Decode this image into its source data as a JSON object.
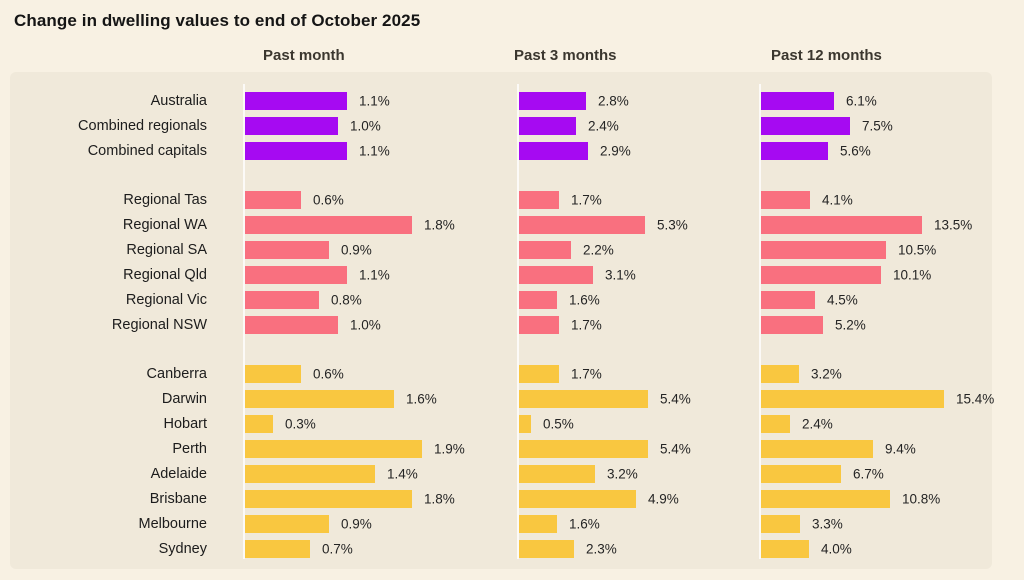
{
  "title": "Change in dwelling values to end of October 2025",
  "columns": [
    "Past month",
    "Past 3 months",
    "Past 12 months"
  ],
  "colors": {
    "background": "#F8F1E3",
    "panel": "#F0E9DA",
    "national": "#A60AF2",
    "regional": "#F9707F",
    "capitals": "#F9C740"
  },
  "chart_data": {
    "type": "bar",
    "orientation": "horizontal",
    "title": "Change in dwelling values to end of October 2025",
    "column_headers": [
      "Past month",
      "Past 3 months",
      "Past 12 months"
    ],
    "value_suffix": "%",
    "legend": "none",
    "grid": "baseline-only",
    "groups": [
      {
        "name": "national",
        "color": "#A60AF2",
        "rows": [
          {
            "label": "Australia",
            "values": [
              1.1,
              2.8,
              6.1
            ]
          },
          {
            "label": "Combined regionals",
            "values": [
              1.0,
              2.4,
              7.5
            ]
          },
          {
            "label": "Combined capitals",
            "values": [
              1.1,
              2.9,
              5.6
            ]
          }
        ]
      },
      {
        "name": "regional",
        "color": "#F9707F",
        "rows": [
          {
            "label": "Regional Tas",
            "values": [
              0.6,
              1.7,
              4.1
            ]
          },
          {
            "label": "Regional WA",
            "values": [
              1.8,
              5.3,
              13.5
            ]
          },
          {
            "label": "Regional SA",
            "values": [
              0.9,
              2.2,
              10.5
            ]
          },
          {
            "label": "Regional Qld",
            "values": [
              1.1,
              3.1,
              10.1
            ]
          },
          {
            "label": "Regional Vic",
            "values": [
              0.8,
              1.6,
              4.5
            ]
          },
          {
            "label": "Regional NSW",
            "values": [
              1.0,
              1.7,
              5.2
            ]
          }
        ]
      },
      {
        "name": "capitals",
        "color": "#F9C740",
        "rows": [
          {
            "label": "Canberra",
            "values": [
              0.6,
              1.7,
              3.2
            ]
          },
          {
            "label": "Darwin",
            "values": [
              1.6,
              5.4,
              15.4
            ]
          },
          {
            "label": "Hobart",
            "values": [
              0.3,
              0.5,
              2.4
            ]
          },
          {
            "label": "Perth",
            "values": [
              1.9,
              5.4,
              9.4
            ]
          },
          {
            "label": "Adelaide",
            "values": [
              1.4,
              3.2,
              6.7
            ]
          },
          {
            "label": "Brisbane",
            "values": [
              1.8,
              4.9,
              10.8
            ]
          },
          {
            "label": "Melbourne",
            "values": [
              0.9,
              1.6,
              3.3
            ]
          },
          {
            "label": "Sydney",
            "values": [
              0.7,
              2.3,
              4.0
            ]
          }
        ]
      }
    ]
  }
}
